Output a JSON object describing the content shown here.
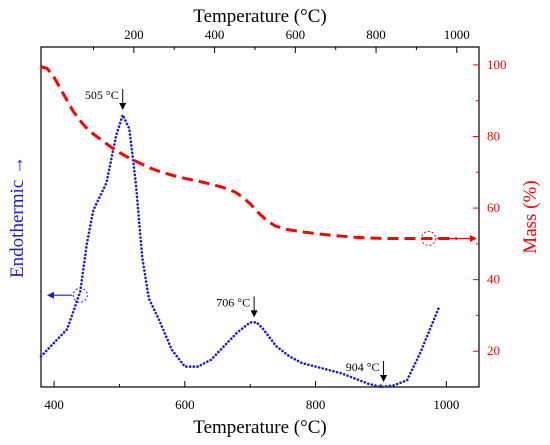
{
  "chart_data": {
    "type": "line",
    "x_bottom": {
      "label": "Temperature (°C)",
      "range": [
        380,
        1050
      ],
      "ticks": [
        400,
        600,
        800,
        1000
      ]
    },
    "x_top": {
      "label": "Temperature (°C)",
      "range": [
        -30,
        1055
      ],
      "ticks": [
        200,
        400,
        600,
        800,
        1000
      ]
    },
    "y_left": {
      "label": "Endothermic →",
      "range": [
        0,
        100
      ],
      "ticks": []
    },
    "y_right": {
      "label": "Mass (%)",
      "range": [
        10,
        105
      ],
      "ticks": [
        20,
        40,
        60,
        80,
        100
      ]
    },
    "series": [
      {
        "key": "dta",
        "axis": "bottom-left",
        "color": "#1a1adc",
        "style": "dotted",
        "x": [
          380,
          400,
          420,
          440,
          450,
          460,
          480,
          495,
          505,
          515,
          525,
          535,
          545,
          560,
          580,
          600,
          620,
          640,
          660,
          680,
          700,
          710,
          720,
          740,
          760,
          780,
          800,
          820,
          840,
          860,
          880,
          900,
          920,
          940,
          960,
          975,
          990
        ],
        "y": [
          9,
          13,
          17,
          28,
          42,
          52,
          60,
          74,
          80,
          76,
          60,
          38,
          26,
          20,
          11,
          6,
          6,
          8,
          12,
          16,
          19,
          19,
          17,
          12,
          9,
          7,
          6,
          5,
          4,
          2.5,
          1,
          0,
          0.5,
          2,
          10,
          17,
          24
        ]
      },
      {
        "key": "tg",
        "axis": "top-right",
        "color": "#ff0000",
        "style": "dashed",
        "x": [
          -30,
          -15,
          0,
          15,
          30,
          50,
          70,
          90,
          120,
          150,
          180,
          210,
          240,
          270,
          300,
          330,
          360,
          390,
          420,
          450,
          470,
          490,
          510,
          530,
          550,
          580,
          620,
          680,
          750,
          820,
          900,
          960,
          1000
        ],
        "y": [
          99.5,
          99,
          97,
          94,
          91,
          87,
          84,
          81.5,
          79,
          76.5,
          74.5,
          72.8,
          71.2,
          70,
          69,
          68.2,
          67.5,
          66.7,
          65.8,
          64.5,
          63,
          61,
          58.5,
          56.5,
          55,
          54,
          53.3,
          52.5,
          51.8,
          51.5,
          51.5,
          51.5,
          51.5
        ]
      }
    ],
    "annotations": [
      {
        "text": "505 °C",
        "x": 505,
        "y": 80
      },
      {
        "text": "706 °C",
        "x": 706,
        "y": 19
      },
      {
        "text": "904 °C",
        "x": 904,
        "y": 0
      }
    ],
    "axis_markers": [
      {
        "series": "dta",
        "points_to": "left",
        "x": 440,
        "y": 27
      },
      {
        "series": "tg",
        "points_to": "right",
        "x": 930,
        "y": 51.5
      }
    ]
  }
}
